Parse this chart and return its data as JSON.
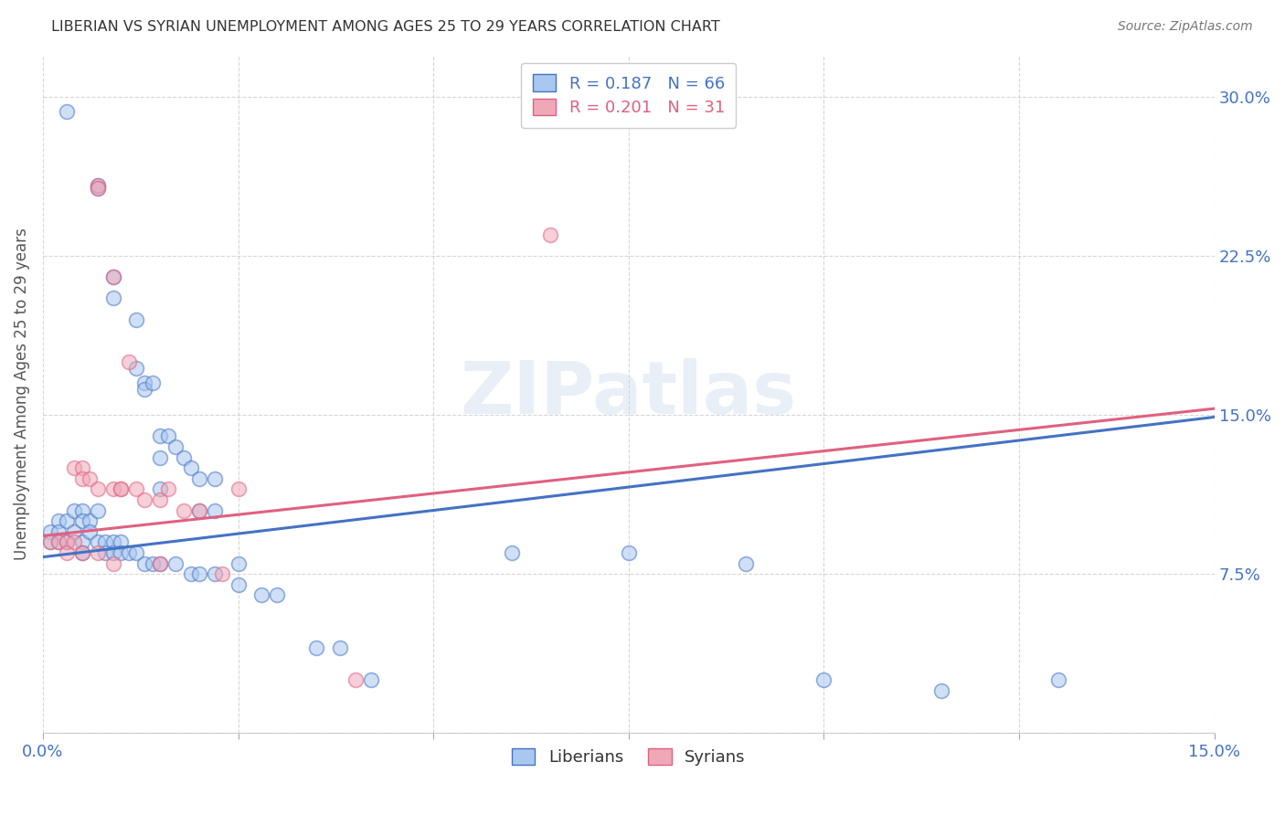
{
  "title": "LIBERIAN VS SYRIAN UNEMPLOYMENT AMONG AGES 25 TO 29 YEARS CORRELATION CHART",
  "source": "Source: ZipAtlas.com",
  "ylabel": "Unemployment Among Ages 25 to 29 years",
  "xlim": [
    0.0,
    0.15
  ],
  "ylim": [
    0.0,
    0.32
  ],
  "xticks": [
    0.0,
    0.025,
    0.05,
    0.075,
    0.1,
    0.125,
    0.15
  ],
  "yticks": [
    0.0,
    0.075,
    0.15,
    0.225,
    0.3
  ],
  "ytick_labels": [
    "",
    "7.5%",
    "15.0%",
    "22.5%",
    "30.0%"
  ],
  "xtick_labels": [
    "0.0%",
    "",
    "",
    "",
    "",
    "",
    "15.0%"
  ],
  "liberian_R": 0.187,
  "liberian_N": 66,
  "syrian_R": 0.201,
  "syrian_N": 31,
  "liberian_color": "#A8C8F0",
  "syrian_color": "#F0A8B8",
  "liberian_line_color": "#4472C4",
  "syrian_line_color": "#E06080",
  "watermark": "ZIPatlas",
  "background_color": "#FFFFFF",
  "grid_color": "#CCCCCC",
  "axis_label_color": "#4472C4",
  "lib_line_x": [
    0.0,
    0.15
  ],
  "lib_line_y": [
    0.083,
    0.149
  ],
  "syr_line_x": [
    0.0,
    0.15
  ],
  "syr_line_y": [
    0.093,
    0.153
  ],
  "liberian_points": [
    [
      0.003,
      0.293
    ],
    [
      0.007,
      0.258
    ],
    [
      0.007,
      0.257
    ],
    [
      0.009,
      0.215
    ],
    [
      0.009,
      0.205
    ],
    [
      0.012,
      0.195
    ],
    [
      0.012,
      0.172
    ],
    [
      0.013,
      0.165
    ],
    [
      0.013,
      0.162
    ],
    [
      0.014,
      0.165
    ],
    [
      0.015,
      0.14
    ],
    [
      0.015,
      0.13
    ],
    [
      0.015,
      0.115
    ],
    [
      0.016,
      0.14
    ],
    [
      0.017,
      0.135
    ],
    [
      0.018,
      0.13
    ],
    [
      0.019,
      0.125
    ],
    [
      0.02,
      0.12
    ],
    [
      0.02,
      0.105
    ],
    [
      0.022,
      0.12
    ],
    [
      0.022,
      0.105
    ],
    [
      0.001,
      0.095
    ],
    [
      0.001,
      0.09
    ],
    [
      0.002,
      0.1
    ],
    [
      0.002,
      0.095
    ],
    [
      0.002,
      0.09
    ],
    [
      0.003,
      0.1
    ],
    [
      0.003,
      0.09
    ],
    [
      0.004,
      0.105
    ],
    [
      0.004,
      0.095
    ],
    [
      0.005,
      0.105
    ],
    [
      0.005,
      0.1
    ],
    [
      0.005,
      0.09
    ],
    [
      0.005,
      0.085
    ],
    [
      0.006,
      0.1
    ],
    [
      0.006,
      0.095
    ],
    [
      0.007,
      0.105
    ],
    [
      0.007,
      0.09
    ],
    [
      0.008,
      0.09
    ],
    [
      0.008,
      0.085
    ],
    [
      0.009,
      0.09
    ],
    [
      0.009,
      0.085
    ],
    [
      0.01,
      0.09
    ],
    [
      0.01,
      0.085
    ],
    [
      0.011,
      0.085
    ],
    [
      0.012,
      0.085
    ],
    [
      0.013,
      0.08
    ],
    [
      0.014,
      0.08
    ],
    [
      0.015,
      0.08
    ],
    [
      0.017,
      0.08
    ],
    [
      0.019,
      0.075
    ],
    [
      0.02,
      0.075
    ],
    [
      0.022,
      0.075
    ],
    [
      0.025,
      0.08
    ],
    [
      0.025,
      0.07
    ],
    [
      0.028,
      0.065
    ],
    [
      0.03,
      0.065
    ],
    [
      0.035,
      0.04
    ],
    [
      0.038,
      0.04
    ],
    [
      0.042,
      0.025
    ],
    [
      0.06,
      0.085
    ],
    [
      0.075,
      0.085
    ],
    [
      0.09,
      0.08
    ],
    [
      0.1,
      0.025
    ],
    [
      0.115,
      0.02
    ],
    [
      0.13,
      0.025
    ]
  ],
  "syrian_points": [
    [
      0.007,
      0.258
    ],
    [
      0.007,
      0.257
    ],
    [
      0.009,
      0.215
    ],
    [
      0.011,
      0.175
    ],
    [
      0.004,
      0.125
    ],
    [
      0.005,
      0.125
    ],
    [
      0.005,
      0.12
    ],
    [
      0.006,
      0.12
    ],
    [
      0.007,
      0.115
    ],
    [
      0.009,
      0.115
    ],
    [
      0.01,
      0.115
    ],
    [
      0.01,
      0.115
    ],
    [
      0.012,
      0.115
    ],
    [
      0.013,
      0.11
    ],
    [
      0.015,
      0.11
    ],
    [
      0.016,
      0.115
    ],
    [
      0.018,
      0.105
    ],
    [
      0.02,
      0.105
    ],
    [
      0.025,
      0.115
    ],
    [
      0.001,
      0.09
    ],
    [
      0.002,
      0.09
    ],
    [
      0.003,
      0.09
    ],
    [
      0.003,
      0.085
    ],
    [
      0.004,
      0.09
    ],
    [
      0.005,
      0.085
    ],
    [
      0.007,
      0.085
    ],
    [
      0.009,
      0.08
    ],
    [
      0.015,
      0.08
    ],
    [
      0.023,
      0.075
    ],
    [
      0.04,
      0.025
    ],
    [
      0.065,
      0.235
    ]
  ]
}
